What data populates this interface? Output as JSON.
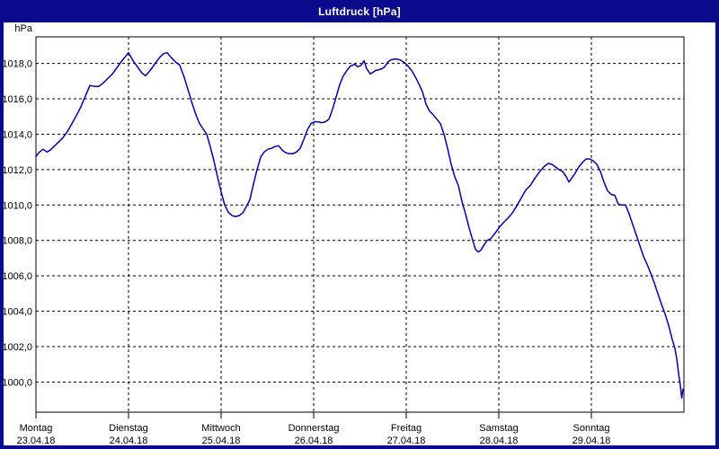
{
  "window": {
    "title": "Luftdruck [hPa]"
  },
  "chart_data": {
    "type": "line",
    "title": "Luftdruck [hPa]",
    "y_unit_label": "hPa",
    "series_name": "Luftdruck",
    "line_color": "#0000b4",
    "grid_color": "#000000",
    "frame_color": "#000000",
    "window_color": "#0a0a8c",
    "plot_background": "#ffffff",
    "grid_style": "dashed",
    "legend_position": "none",
    "ylim": [
      998.3,
      1019.5
    ],
    "yticks": [
      1018,
      1016,
      1014,
      1012,
      1010,
      1008,
      1006,
      1004,
      1002,
      1000
    ],
    "ytick_labels": [
      "1018,0",
      "1016,0",
      "1014,0",
      "1012,0",
      "1010,0",
      "1008,0",
      "1006,0",
      "1004,0",
      "1002,0",
      "1000,0"
    ],
    "xlim_days": [
      0,
      7
    ],
    "xticks": [
      {
        "t": 0,
        "day": "Montag",
        "date": "23.04.18"
      },
      {
        "t": 1,
        "day": "Dienstag",
        "date": "24.04.18"
      },
      {
        "t": 2,
        "day": "Mittwoch",
        "date": "25.04.18"
      },
      {
        "t": 3,
        "day": "Donnerstag",
        "date": "26.04.18"
      },
      {
        "t": 4,
        "day": "Freitag",
        "date": "27.04.18"
      },
      {
        "t": 5,
        "day": "Samstag",
        "date": "28.04.18"
      },
      {
        "t": 6,
        "day": "Sonntag",
        "date": "29.04.18"
      }
    ],
    "points": [
      [
        0,
        1012.75
      ],
      [
        0.039,
        1013
      ],
      [
        0.078,
        1013.15
      ],
      [
        0.117,
        1013
      ],
      [
        0.155,
        1013.1
      ],
      [
        0.194,
        1013.3
      ],
      [
        0.243,
        1013.55
      ],
      [
        0.291,
        1013.8
      ],
      [
        0.34,
        1014.15
      ],
      [
        0.388,
        1014.6
      ],
      [
        0.437,
        1015.05
      ],
      [
        0.485,
        1015.55
      ],
      [
        0.534,
        1016.15
      ],
      [
        0.583,
        1016.75
      ],
      [
        0.631,
        1016.7
      ],
      [
        0.68,
        1016.7
      ],
      [
        0.728,
        1016.9
      ],
      [
        0.777,
        1017.15
      ],
      [
        0.825,
        1017.4
      ],
      [
        0.874,
        1017.75
      ],
      [
        0.922,
        1018.1
      ],
      [
        0.961,
        1018.35
      ],
      [
        1,
        1018.6
      ],
      [
        1.049,
        1018.15
      ],
      [
        1.097,
        1017.8
      ],
      [
        1.146,
        1017.45
      ],
      [
        1.184,
        1017.3
      ],
      [
        1.233,
        1017.6
      ],
      [
        1.282,
        1017.95
      ],
      [
        1.33,
        1018.3
      ],
      [
        1.379,
        1018.55
      ],
      [
        1.417,
        1018.6
      ],
      [
        1.466,
        1018.3
      ],
      [
        1.515,
        1018.05
      ],
      [
        1.553,
        1017.9
      ],
      [
        1.602,
        1017.2
      ],
      [
        1.65,
        1016.4
      ],
      [
        1.689,
        1015.7
      ],
      [
        1.728,
        1015.1
      ],
      [
        1.767,
        1014.6
      ],
      [
        1.806,
        1014.3
      ],
      [
        1.845,
        1014
      ],
      [
        1.883,
        1013.3
      ],
      [
        1.922,
        1012.5
      ],
      [
        1.961,
        1011.6
      ],
      [
        2,
        1010.75
      ],
      [
        2.039,
        1010
      ],
      [
        2.078,
        1009.6
      ],
      [
        2.117,
        1009.4
      ],
      [
        2.155,
        1009.35
      ],
      [
        2.194,
        1009.4
      ],
      [
        2.233,
        1009.55
      ],
      [
        2.272,
        1009.9
      ],
      [
        2.311,
        1010.3
      ],
      [
        2.35,
        1011.2
      ],
      [
        2.388,
        1012
      ],
      [
        2.427,
        1012.7
      ],
      [
        2.466,
        1013
      ],
      [
        2.505,
        1013.15
      ],
      [
        2.544,
        1013.2
      ],
      [
        2.583,
        1013.3
      ],
      [
        2.621,
        1013.35
      ],
      [
        2.66,
        1013.1
      ],
      [
        2.699,
        1012.95
      ],
      [
        2.738,
        1012.9
      ],
      [
        2.777,
        1012.9
      ],
      [
        2.816,
        1013
      ],
      [
        2.854,
        1013.2
      ],
      [
        2.893,
        1013.7
      ],
      [
        2.932,
        1014.25
      ],
      [
        2.971,
        1014.6
      ],
      [
        3.01,
        1014.7
      ],
      [
        3.049,
        1014.7
      ],
      [
        3.087,
        1014.65
      ],
      [
        3.126,
        1014.7
      ],
      [
        3.165,
        1014.85
      ],
      [
        3.204,
        1015.4
      ],
      [
        3.243,
        1016.1
      ],
      [
        3.282,
        1016.8
      ],
      [
        3.32,
        1017.3
      ],
      [
        3.359,
        1017.6
      ],
      [
        3.398,
        1017.85
      ],
      [
        3.447,
        1017.95
      ],
      [
        3.476,
        1017.8
      ],
      [
        3.515,
        1017.9
      ],
      [
        3.544,
        1018.15
      ],
      [
        3.573,
        1017.7
      ],
      [
        3.612,
        1017.4
      ],
      [
        3.641,
        1017.5
      ],
      [
        3.67,
        1017.6
      ],
      [
        3.709,
        1017.65
      ],
      [
        3.738,
        1017.7
      ],
      [
        3.767,
        1017.8
      ],
      [
        3.806,
        1018.1
      ],
      [
        3.835,
        1018.2
      ],
      [
        3.883,
        1018.25
      ],
      [
        3.932,
        1018.2
      ],
      [
        3.981,
        1018.05
      ],
      [
        4.01,
        1017.9
      ],
      [
        4.058,
        1017.6
      ],
      [
        4.107,
        1017.15
      ],
      [
        4.136,
        1016.85
      ],
      [
        4.175,
        1016.4
      ],
      [
        4.214,
        1015.7
      ],
      [
        4.252,
        1015.3
      ],
      [
        4.291,
        1015.1
      ],
      [
        4.33,
        1014.85
      ],
      [
        4.369,
        1014.6
      ],
      [
        4.408,
        1014
      ],
      [
        4.447,
        1013.2
      ],
      [
        4.485,
        1012.3
      ],
      [
        4.524,
        1011.6
      ],
      [
        4.563,
        1011.1
      ],
      [
        4.602,
        1010.2
      ],
      [
        4.641,
        1009.5
      ],
      [
        4.68,
        1008.7
      ],
      [
        4.718,
        1008
      ],
      [
        4.748,
        1007.5
      ],
      [
        4.777,
        1007.35
      ],
      [
        4.806,
        1007.45
      ],
      [
        4.835,
        1007.7
      ],
      [
        4.874,
        1008
      ],
      [
        4.913,
        1008.1
      ],
      [
        4.951,
        1008.35
      ],
      [
        5,
        1008.7
      ],
      [
        5.049,
        1009
      ],
      [
        5.097,
        1009.25
      ],
      [
        5.146,
        1009.55
      ],
      [
        5.194,
        1009.95
      ],
      [
        5.243,
        1010.4
      ],
      [
        5.291,
        1010.85
      ],
      [
        5.34,
        1011.1
      ],
      [
        5.388,
        1011.5
      ],
      [
        5.437,
        1011.85
      ],
      [
        5.485,
        1012.15
      ],
      [
        5.534,
        1012.35
      ],
      [
        5.573,
        1012.3
      ],
      [
        5.612,
        1012.15
      ],
      [
        5.65,
        1012
      ],
      [
        5.689,
        1011.9
      ],
      [
        5.728,
        1011.6
      ],
      [
        5.757,
        1011.3
      ],
      [
        5.786,
        1011.5
      ],
      [
        5.825,
        1011.8
      ],
      [
        5.864,
        1012.15
      ],
      [
        5.903,
        1012.4
      ],
      [
        5.942,
        1012.6
      ],
      [
        5.981,
        1012.6
      ],
      [
        6.019,
        1012.5
      ],
      [
        6.058,
        1012.3
      ],
      [
        6.097,
        1011.9
      ],
      [
        6.136,
        1011.3
      ],
      [
        6.175,
        1010.8
      ],
      [
        6.214,
        1010.6
      ],
      [
        6.252,
        1010.55
      ],
      [
        6.291,
        1010.05
      ],
      [
        6.33,
        1010
      ],
      [
        6.369,
        1010
      ],
      [
        6.408,
        1009.5
      ],
      [
        6.447,
        1008.9
      ],
      [
        6.485,
        1008.3
      ],
      [
        6.524,
        1007.7
      ],
      [
        6.563,
        1007.1
      ],
      [
        6.602,
        1006.65
      ],
      [
        6.641,
        1006.15
      ],
      [
        6.68,
        1005.6
      ],
      [
        6.718,
        1005
      ],
      [
        6.757,
        1004.4
      ],
      [
        6.796,
        1003.85
      ],
      [
        6.835,
        1003.2
      ],
      [
        6.874,
        1002.4
      ],
      [
        6.903,
        1001.9
      ],
      [
        6.922,
        1001.3
      ],
      [
        6.942,
        1000.5
      ],
      [
        6.961,
        999.8
      ],
      [
        6.976,
        999.1
      ],
      [
        6.99,
        999.6
      ]
    ]
  }
}
